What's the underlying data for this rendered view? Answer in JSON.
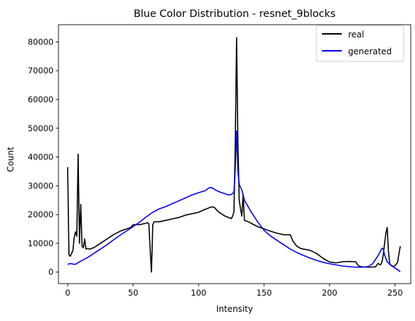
{
  "chart_data": {
    "type": "line",
    "title": "Blue Color Distribution - resnet_9blocks",
    "xlabel": "Intensity",
    "ylabel": "Count",
    "xlim": [
      -7,
      262
    ],
    "ylim": [
      -4000,
      86000
    ],
    "xticks": [
      0,
      50,
      100,
      150,
      200,
      250
    ],
    "yticks": [
      0,
      10000,
      20000,
      30000,
      40000,
      50000,
      60000,
      70000,
      80000
    ],
    "grid": false,
    "legend_position": "top-right",
    "series": [
      {
        "name": "real",
        "color": "#000000",
        "points": [
          [
            0,
            36500
          ],
          [
            1,
            6000
          ],
          [
            2,
            5500
          ],
          [
            3,
            6500
          ],
          [
            4,
            7500
          ],
          [
            5,
            12000
          ],
          [
            6,
            14000
          ],
          [
            7,
            12500
          ],
          [
            8,
            41000
          ],
          [
            9,
            10000
          ],
          [
            10,
            23500
          ],
          [
            11,
            9000
          ],
          [
            12,
            8500
          ],
          [
            13,
            11500
          ],
          [
            14,
            8000
          ],
          [
            15,
            8200
          ],
          [
            17,
            8000
          ],
          [
            20,
            8500
          ],
          [
            25,
            10000
          ],
          [
            30,
            11500
          ],
          [
            35,
            13000
          ],
          [
            40,
            14200
          ],
          [
            45,
            15000
          ],
          [
            48,
            15500
          ],
          [
            50,
            16500
          ],
          [
            55,
            16500
          ],
          [
            60,
            17000
          ],
          [
            61,
            17200
          ],
          [
            62,
            16800
          ],
          [
            63,
            8000
          ],
          [
            64,
            0
          ],
          [
            65,
            16500
          ],
          [
            66,
            17500
          ],
          [
            70,
            17500
          ],
          [
            75,
            18000
          ],
          [
            80,
            18500
          ],
          [
            85,
            19000
          ],
          [
            90,
            19800
          ],
          [
            95,
            20300
          ],
          [
            100,
            20800
          ],
          [
            105,
            21800
          ],
          [
            110,
            22700
          ],
          [
            112,
            22500
          ],
          [
            115,
            21000
          ],
          [
            120,
            19500
          ],
          [
            125,
            18600
          ],
          [
            126,
            19500
          ],
          [
            127,
            21000
          ],
          [
            128,
            45000
          ],
          [
            129,
            81500
          ],
          [
            130,
            45000
          ],
          [
            131,
            25000
          ],
          [
            132,
            22000
          ],
          [
            133,
            19500
          ],
          [
            134,
            27000
          ],
          [
            135,
            18000
          ],
          [
            138,
            17500
          ],
          [
            140,
            17000
          ],
          [
            145,
            15800
          ],
          [
            150,
            15000
          ],
          [
            155,
            14200
          ],
          [
            160,
            13500
          ],
          [
            165,
            13000
          ],
          [
            170,
            13000
          ],
          [
            172,
            10800
          ],
          [
            175,
            9000
          ],
          [
            178,
            8200
          ],
          [
            180,
            8000
          ],
          [
            185,
            7600
          ],
          [
            190,
            6500
          ],
          [
            195,
            4800
          ],
          [
            200,
            3500
          ],
          [
            205,
            3200
          ],
          [
            210,
            3600
          ],
          [
            215,
            3700
          ],
          [
            220,
            3600
          ],
          [
            222,
            2200
          ],
          [
            225,
            1800
          ],
          [
            230,
            1700
          ],
          [
            235,
            1800
          ],
          [
            237,
            3000
          ],
          [
            239,
            2500
          ],
          [
            240,
            3500
          ],
          [
            241,
            6000
          ],
          [
            242,
            10000
          ],
          [
            243,
            13500
          ],
          [
            244,
            15500
          ],
          [
            245,
            7000
          ],
          [
            246,
            2600
          ],
          [
            248,
            2000
          ],
          [
            250,
            2200
          ],
          [
            252,
            3500
          ],
          [
            253,
            6500
          ],
          [
            254,
            9000
          ]
        ]
      },
      {
        "name": "generated",
        "color": "#0000ff",
        "points": [
          [
            0,
            2700
          ],
          [
            2,
            3000
          ],
          [
            4,
            2800
          ],
          [
            6,
            2700
          ],
          [
            8,
            3300
          ],
          [
            10,
            3800
          ],
          [
            15,
            5000
          ],
          [
            20,
            6500
          ],
          [
            25,
            8000
          ],
          [
            30,
            9500
          ],
          [
            35,
            11200
          ],
          [
            40,
            12800
          ],
          [
            45,
            14300
          ],
          [
            50,
            15800
          ],
          [
            55,
            17400
          ],
          [
            60,
            19200
          ],
          [
            65,
            20800
          ],
          [
            70,
            22000
          ],
          [
            75,
            22800
          ],
          [
            80,
            23800
          ],
          [
            85,
            24800
          ],
          [
            90,
            25800
          ],
          [
            95,
            26800
          ],
          [
            100,
            27600
          ],
          [
            105,
            28300
          ],
          [
            108,
            29300
          ],
          [
            110,
            29400
          ],
          [
            113,
            28500
          ],
          [
            117,
            27700
          ],
          [
            120,
            27300
          ],
          [
            123,
            26800
          ],
          [
            125,
            27000
          ],
          [
            126,
            27300
          ],
          [
            127,
            28000
          ],
          [
            128,
            36000
          ],
          [
            129,
            49000
          ],
          [
            130,
            35000
          ],
          [
            131,
            30500
          ],
          [
            133,
            28500
          ],
          [
            135,
            25000
          ],
          [
            140,
            21000
          ],
          [
            145,
            17500
          ],
          [
            150,
            14500
          ],
          [
            155,
            12500
          ],
          [
            160,
            11000
          ],
          [
            165,
            9500
          ],
          [
            170,
            8000
          ],
          [
            175,
            6800
          ],
          [
            180,
            5800
          ],
          [
            185,
            4900
          ],
          [
            190,
            4100
          ],
          [
            195,
            3400
          ],
          [
            200,
            2900
          ],
          [
            205,
            2500
          ],
          [
            210,
            2100
          ],
          [
            215,
            1900
          ],
          [
            220,
            1700
          ],
          [
            225,
            1700
          ],
          [
            230,
            2000
          ],
          [
            233,
            3000
          ],
          [
            236,
            5000
          ],
          [
            238,
            6500
          ],
          [
            240,
            8300
          ],
          [
            241,
            8000
          ],
          [
            242,
            6000
          ],
          [
            244,
            3500
          ],
          [
            246,
            2800
          ],
          [
            248,
            2000
          ],
          [
            250,
            1400
          ],
          [
            252,
            800
          ],
          [
            254,
            100
          ]
        ]
      }
    ]
  }
}
